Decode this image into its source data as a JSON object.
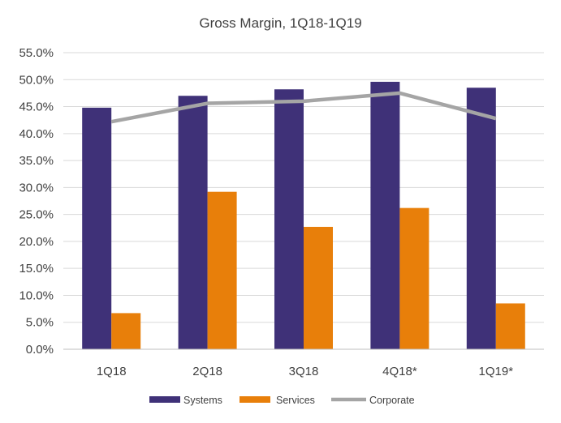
{
  "chart_data": {
    "type": "bar",
    "title": "Gross Margin, 1Q18-1Q19",
    "xlabel": "",
    "ylabel": "",
    "categories": [
      "1Q18",
      "2Q18",
      "3Q18",
      "4Q18*",
      "1Q19*"
    ],
    "ylim": [
      0,
      55
    ],
    "yticks": [
      0,
      5,
      10,
      15,
      20,
      25,
      30,
      35,
      40,
      45,
      50,
      55
    ],
    "ytick_labels": [
      "0.0%",
      "5.0%",
      "10.0%",
      "15.0%",
      "20.0%",
      "25.0%",
      "30.0%",
      "35.0%",
      "40.0%",
      "45.0%",
      "50.0%",
      "55.0%"
    ],
    "grid": true,
    "legend_position": "bottom",
    "series": [
      {
        "name": "Systems",
        "type": "bar",
        "color": "#3f3178",
        "values": [
          44.8,
          47.0,
          48.2,
          49.6,
          48.5
        ]
      },
      {
        "name": "Services",
        "type": "bar",
        "color": "#e87f0a",
        "values": [
          6.7,
          29.2,
          22.7,
          26.2,
          8.5
        ]
      },
      {
        "name": "Corporate",
        "type": "line",
        "color": "#a5a5a5",
        "values": [
          42.2,
          45.6,
          46.0,
          47.5,
          42.8
        ]
      }
    ]
  }
}
